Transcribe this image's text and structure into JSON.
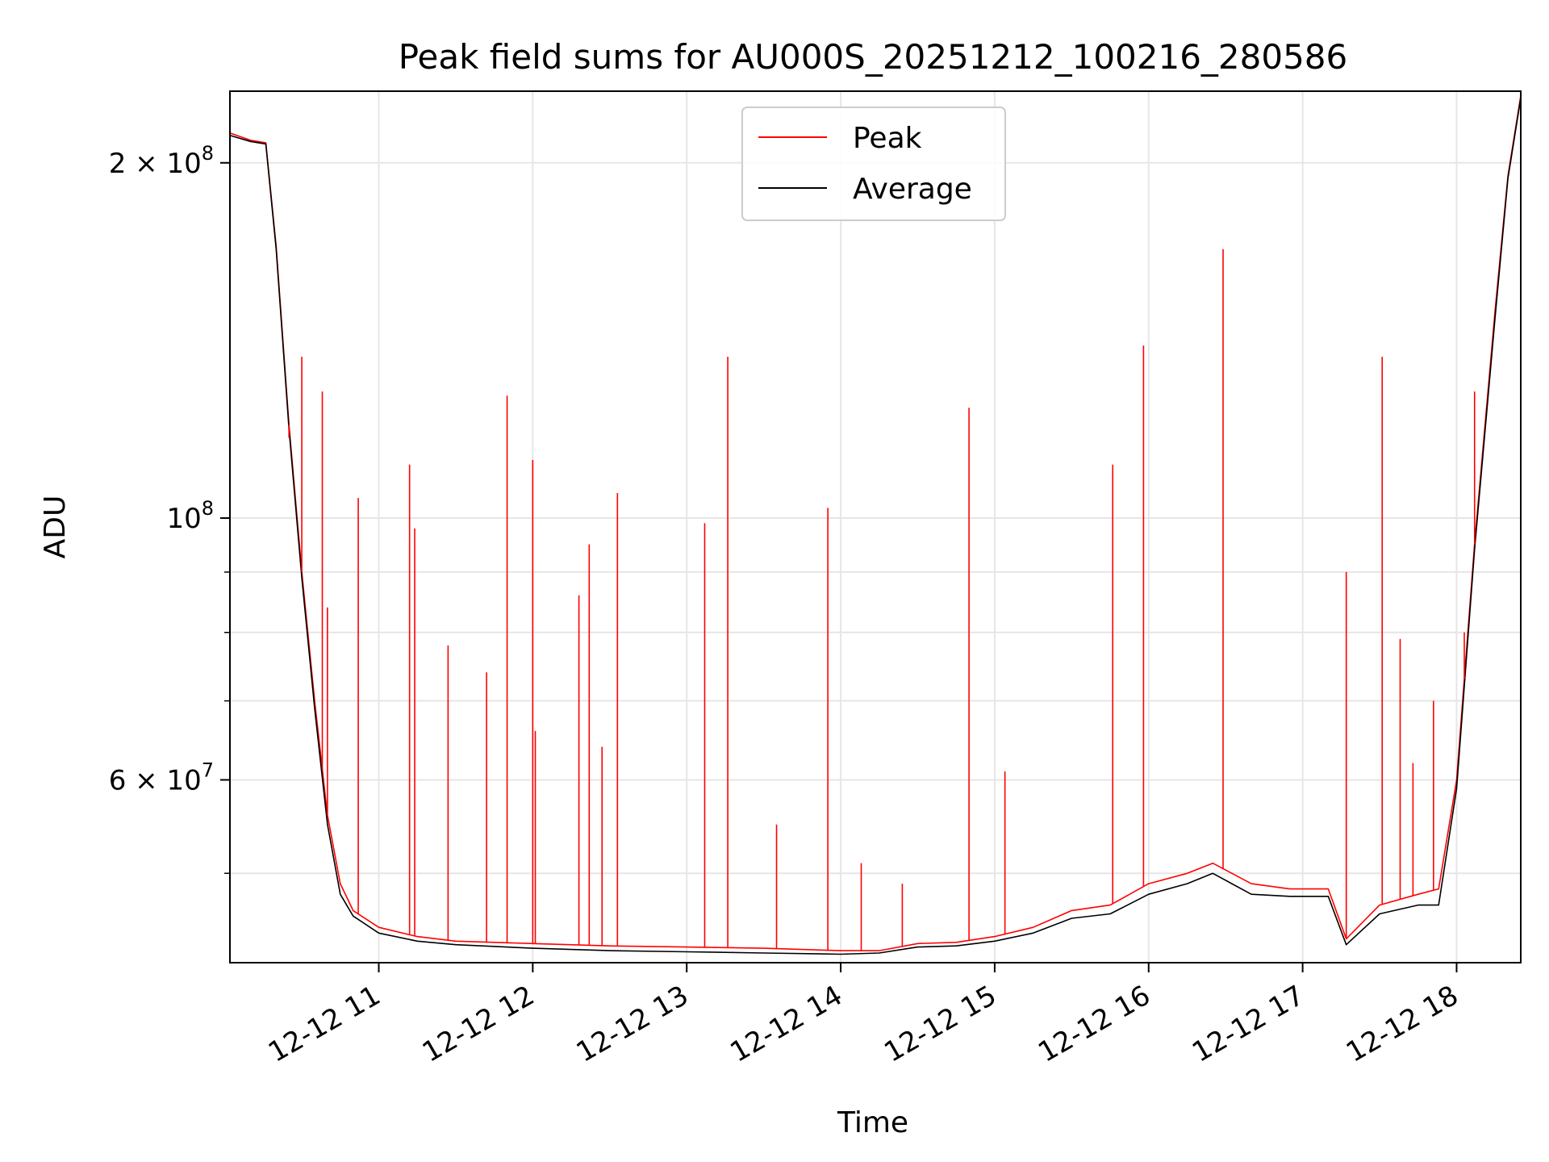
{
  "chart_data": {
    "type": "line",
    "title": "Peak field sums for AU000S_20251212_100216_280586",
    "xlabel": "Time",
    "ylabel": "ADU",
    "yscale": "log",
    "xlim": [
      "2025-12-12 10:02",
      "2025-12-12 18:25"
    ],
    "ylim": [
      42000000,
      230000000
    ],
    "grid": true,
    "legend_position": "top-center",
    "x_ticks": [
      "12-12 11",
      "12-12 12",
      "12-12 13",
      "12-12 14",
      "12-12 15",
      "12-12 16",
      "12-12 17",
      "12-12 18"
    ],
    "x_tick_times": [
      "2025-12-12 11:00",
      "2025-12-12 12:00",
      "2025-12-12 13:00",
      "2025-12-12 14:00",
      "2025-12-12 15:00",
      "2025-12-12 16:00",
      "2025-12-12 17:00",
      "2025-12-12 18:00"
    ],
    "y_major_ticks": [
      {
        "value": 200000000,
        "mantissa": "2",
        "exponent": "8"
      },
      {
        "value": 100000000,
        "mantissa": "",
        "exponent": "8"
      },
      {
        "value": 60000000,
        "mantissa": "6",
        "exponent": "7"
      }
    ],
    "y_minor_ticks": [
      50000000,
      70000000,
      80000000,
      90000000
    ],
    "series": [
      {
        "name": "Peak",
        "color": "#ff0000",
        "x": [
          "2025-12-12 10:02",
          "2025-12-12 10:10",
          "2025-12-12 10:16",
          "2025-12-12 10:20",
          "2025-12-12 10:25",
          "2025-12-12 10:30",
          "2025-12-12 10:35",
          "2025-12-12 10:40",
          "2025-12-12 10:45",
          "2025-12-12 10:50",
          "2025-12-12 11:00",
          "2025-12-12 11:15",
          "2025-12-12 11:30",
          "2025-12-12 12:00",
          "2025-12-12 12:30",
          "2025-12-12 13:00",
          "2025-12-12 13:30",
          "2025-12-12 14:00",
          "2025-12-12 14:15",
          "2025-12-12 14:30",
          "2025-12-12 14:45",
          "2025-12-12 15:00",
          "2025-12-12 15:15",
          "2025-12-12 15:30",
          "2025-12-12 15:45",
          "2025-12-12 16:00",
          "2025-12-12 16:15",
          "2025-12-12 16:25",
          "2025-12-12 16:40",
          "2025-12-12 16:55",
          "2025-12-12 17:10",
          "2025-12-12 17:17",
          "2025-12-12 17:30",
          "2025-12-12 17:45",
          "2025-12-12 17:53",
          "2025-12-12 18:00",
          "2025-12-12 18:07",
          "2025-12-12 18:15",
          "2025-12-12 18:20",
          "2025-12-12 18:25"
        ],
        "y": [
          212000000,
          209000000,
          208000000,
          170000000,
          120000000,
          90000000,
          70000000,
          56000000,
          49000000,
          46500000,
          45000000,
          44200000,
          43800000,
          43600000,
          43400000,
          43300000,
          43200000,
          43000000,
          43000000,
          43600000,
          43700000,
          44200000,
          45000000,
          46500000,
          47000000,
          49000000,
          50000000,
          51000000,
          49000000,
          48500000,
          48500000,
          44000000,
          47000000,
          48000000,
          48500000,
          60000000,
          95000000,
          150000000,
          195000000,
          228000000
        ]
      },
      {
        "name": "Average",
        "color": "#000000",
        "x": [
          "2025-12-12 10:02",
          "2025-12-12 10:10",
          "2025-12-12 10:16",
          "2025-12-12 10:20",
          "2025-12-12 10:25",
          "2025-12-12 10:30",
          "2025-12-12 10:35",
          "2025-12-12 10:40",
          "2025-12-12 10:45",
          "2025-12-12 10:50",
          "2025-12-12 11:00",
          "2025-12-12 11:15",
          "2025-12-12 11:30",
          "2025-12-12 12:00",
          "2025-12-12 12:30",
          "2025-12-12 13:00",
          "2025-12-12 13:30",
          "2025-12-12 14:00",
          "2025-12-12 14:15",
          "2025-12-12 14:30",
          "2025-12-12 14:45",
          "2025-12-12 15:00",
          "2025-12-12 15:15",
          "2025-12-12 15:30",
          "2025-12-12 15:45",
          "2025-12-12 16:00",
          "2025-12-12 16:15",
          "2025-12-12 16:25",
          "2025-12-12 16:40",
          "2025-12-12 16:55",
          "2025-12-12 17:10",
          "2025-12-12 17:17",
          "2025-12-12 17:30",
          "2025-12-12 17:45",
          "2025-12-12 17:53",
          "2025-12-12 18:00",
          "2025-12-12 18:07",
          "2025-12-12 18:15",
          "2025-12-12 18:20",
          "2025-12-12 18:25"
        ],
        "y": [
          211000000,
          208500000,
          207500000,
          169000000,
          119000000,
          89000000,
          69000000,
          55000000,
          48000000,
          46000000,
          44500000,
          43800000,
          43500000,
          43200000,
          43000000,
          42900000,
          42800000,
          42700000,
          42800000,
          43300000,
          43400000,
          43800000,
          44500000,
          45800000,
          46200000,
          48000000,
          49000000,
          50000000,
          48000000,
          47800000,
          47800000,
          43500000,
          46200000,
          47000000,
          47000000,
          59000000,
          94000000,
          148000000,
          194000000,
          227000000
        ]
      }
    ],
    "peak_spikes": {
      "x": [
        "2025-12-12 10:25",
        "2025-12-12 10:30",
        "2025-12-12 10:38",
        "2025-12-12 10:40",
        "2025-12-12 10:52",
        "2025-12-12 11:12",
        "2025-12-12 11:14",
        "2025-12-12 11:27",
        "2025-12-12 11:42",
        "2025-12-12 11:50",
        "2025-12-12 12:00",
        "2025-12-12 12:01",
        "2025-12-12 12:18",
        "2025-12-12 12:22",
        "2025-12-12 12:27",
        "2025-12-12 12:33",
        "2025-12-12 13:07",
        "2025-12-12 13:16",
        "2025-12-12 13:35",
        "2025-12-12 13:55",
        "2025-12-12 14:08",
        "2025-12-12 14:24",
        "2025-12-12 14:50",
        "2025-12-12 15:04",
        "2025-12-12 15:46",
        "2025-12-12 15:58",
        "2025-12-12 16:29",
        "2025-12-12 17:17",
        "2025-12-12 17:31",
        "2025-12-12 17:38",
        "2025-12-12 17:43",
        "2025-12-12 17:51",
        "2025-12-12 18:03",
        "2025-12-12 18:07"
      ],
      "y": [
        117000000,
        137000000,
        128000000,
        84000000,
        104000000,
        111000000,
        98000000,
        78000000,
        74000000,
        127000000,
        112000000,
        66000000,
        86000000,
        95000000,
        64000000,
        105000000,
        99000000,
        137000000,
        55000000,
        102000000,
        51000000,
        49000000,
        124000000,
        61000000,
        111000000,
        140000000,
        169000000,
        90000000,
        137000000,
        79000000,
        62000000,
        70000000,
        80000000,
        128000000
      ]
    }
  },
  "legend": [
    {
      "label": "Peak",
      "color": "#ff0000"
    },
    {
      "label": "Average",
      "color": "#000000"
    }
  ]
}
